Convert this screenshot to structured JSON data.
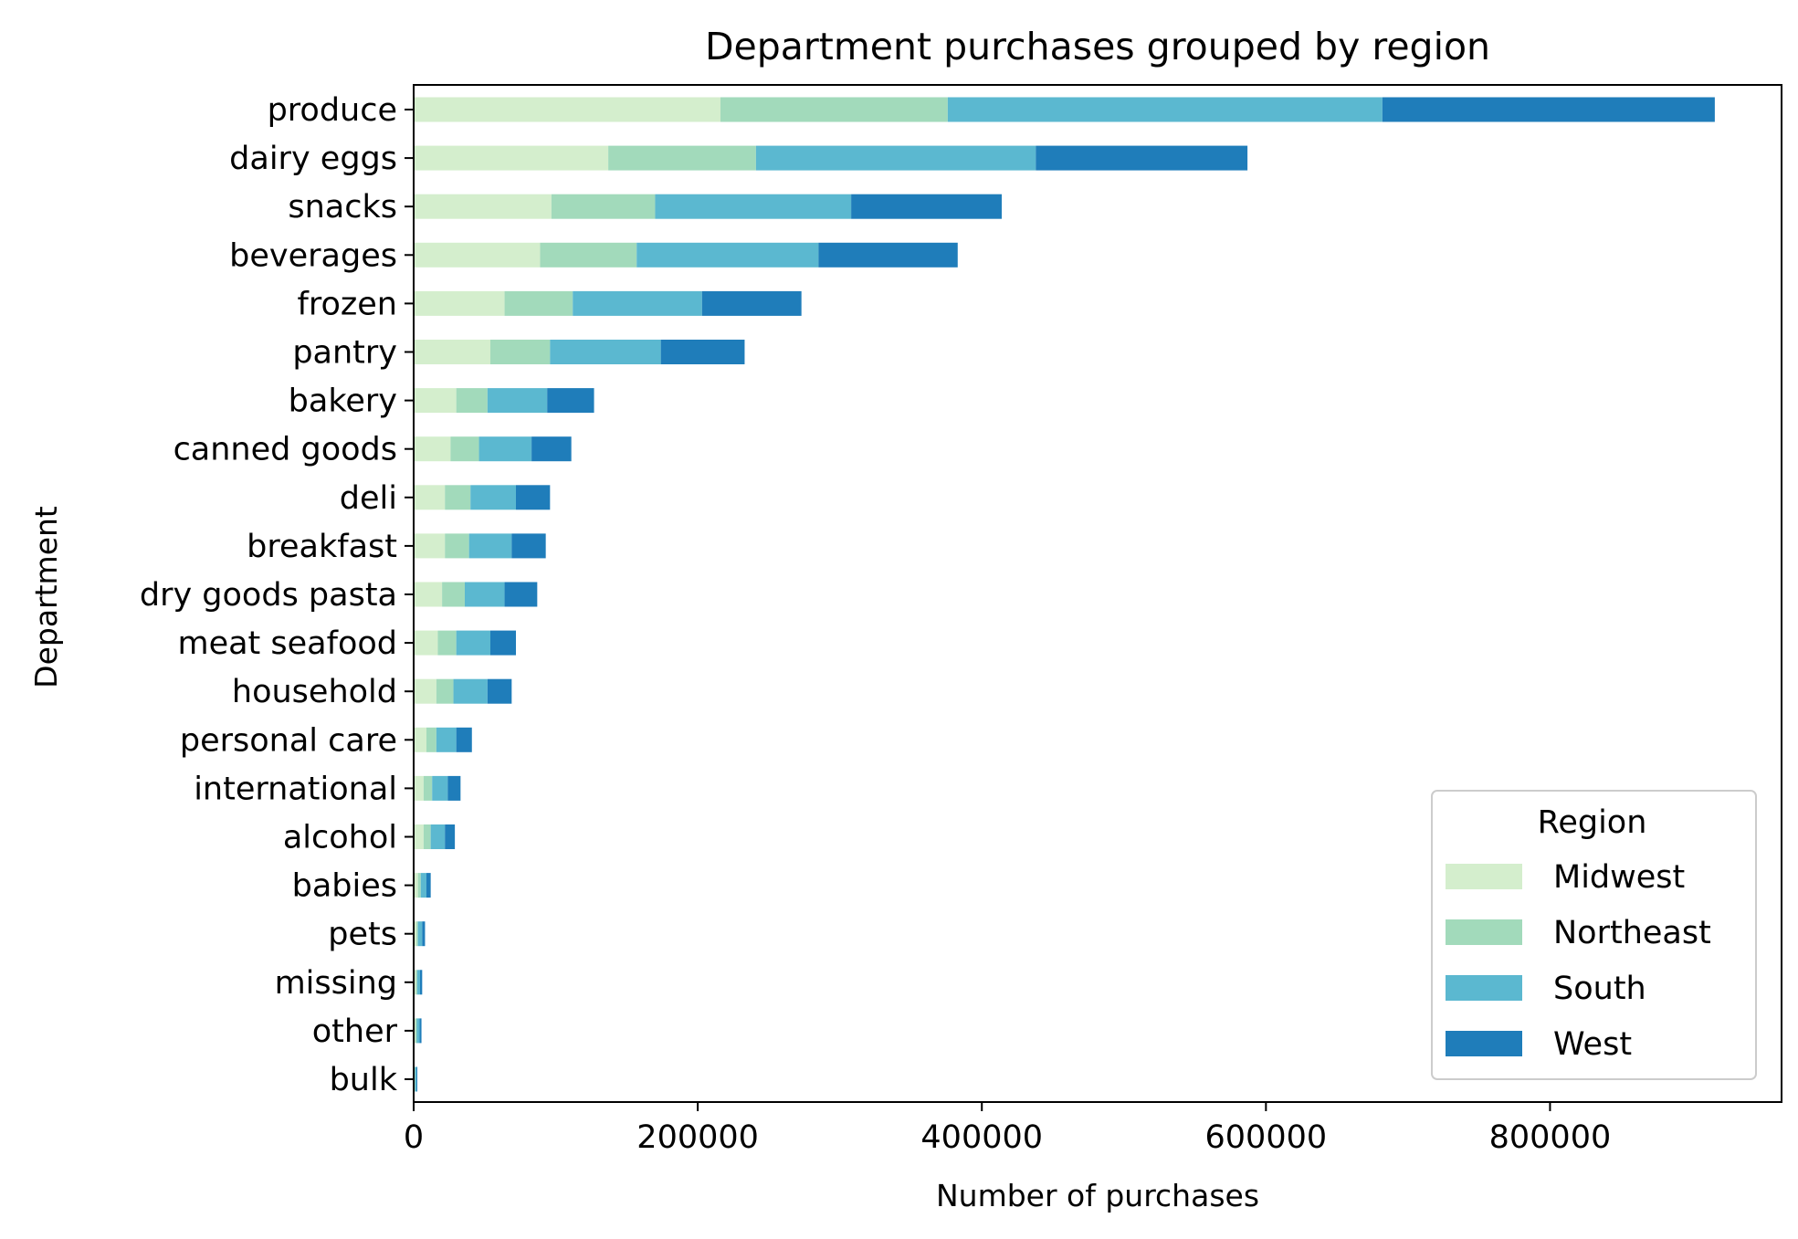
{
  "chart_data": {
    "type": "bar",
    "orientation": "horizontal",
    "stacked": true,
    "title": "Department purchases grouped by region",
    "xlabel": "Number of purchases",
    "ylabel": "Department",
    "xlim": [
      0,
      963000
    ],
    "xticks": [
      0,
      200000,
      400000,
      600000,
      800000
    ],
    "xtick_labels": [
      "0",
      "200000",
      "400000",
      "600000",
      "800000"
    ],
    "grid": false,
    "categories": [
      "produce",
      "dairy eggs",
      "snacks",
      "beverages",
      "frozen",
      "pantry",
      "bakery",
      "canned goods",
      "deli",
      "breakfast",
      "dry goods pasta",
      "meat seafood",
      "household",
      "personal care",
      "international",
      "alcohol",
      "babies",
      "pets",
      "missing",
      "other",
      "bulk"
    ],
    "series": [
      {
        "name": "Midwest",
        "color": "#d4eecd",
        "values": [
          216000,
          137000,
          97000,
          89000,
          64000,
          54000,
          30000,
          26000,
          22000,
          22000,
          20000,
          17000,
          16000,
          9000,
          7000,
          7000,
          3000,
          2000,
          1500,
          1200,
          600
        ]
      },
      {
        "name": "Northeast",
        "color": "#a2dabb",
        "values": [
          160000,
          104000,
          73000,
          68000,
          48000,
          42000,
          22000,
          20000,
          18000,
          17000,
          16000,
          13000,
          12000,
          7000,
          6000,
          5000,
          2000,
          1000,
          1000,
          1000,
          400
        ]
      },
      {
        "name": "South",
        "color": "#5bb8d0",
        "values": [
          306000,
          197000,
          138000,
          128000,
          91000,
          78000,
          42000,
          37000,
          32000,
          30000,
          28000,
          24000,
          24000,
          14000,
          11000,
          10000,
          4000,
          3000,
          2000,
          2000,
          1000
        ]
      },
      {
        "name": "West",
        "color": "#1f7dba",
        "values": [
          234000,
          149000,
          106000,
          98000,
          70000,
          59000,
          33000,
          28000,
          24000,
          24000,
          23000,
          18000,
          17000,
          11000,
          9000,
          7000,
          3000,
          2000,
          1500,
          1300,
          600
        ]
      }
    ],
    "legend": {
      "title": "Region",
      "position": "lower-right"
    }
  }
}
